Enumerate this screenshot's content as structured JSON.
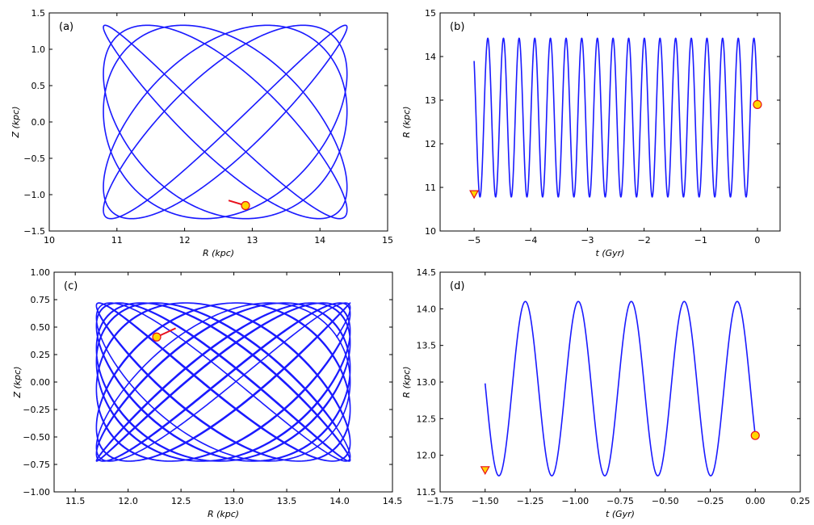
{
  "colors": {
    "orbit": "#1a1aff",
    "marker_fill": "#ffd700",
    "marker_edge": "#e8101c",
    "segment": "#e8101c"
  },
  "chart_data": [
    {
      "panel": "(a)",
      "type": "line",
      "xlabel": "R (kpc)",
      "ylabel": "Z (kpc)",
      "xlim": [
        10,
        15
      ],
      "ylim": [
        -1.5,
        1.5
      ],
      "xticks": [
        10,
        11,
        12,
        13,
        14,
        15
      ],
      "yticks": [
        -1.5,
        -1.0,
        -0.5,
        0.0,
        0.5,
        1.0,
        1.5
      ],
      "xtick_labels": [
        "10",
        "11",
        "12",
        "13",
        "14",
        "15"
      ],
      "ytick_labels": [
        "−1.5",
        "−1.0",
        "−0.5",
        "0.0",
        "0.5",
        "1.0",
        "1.5"
      ],
      "orbit": {
        "r_min": 10.8,
        "r_max": 14.4,
        "z_amp": 1.33,
        "cycles": 11,
        "z_cycles": 13.2,
        "phase_r": 0.45,
        "phase_z": 4.2
      },
      "current_position": {
        "x": 12.9,
        "y": -1.15
      },
      "start_position": null,
      "recent_path": [
        {
          "x": 12.65,
          "y": -1.08
        },
        {
          "x": 12.9,
          "y": -1.15
        }
      ]
    },
    {
      "panel": "(b)",
      "type": "line",
      "xlabel": "t (Gyr)",
      "ylabel": "R (kpc)",
      "xlim": [
        -5.6,
        0.4
      ],
      "ylim": [
        10,
        15
      ],
      "xticks": [
        -5,
        -4,
        -3,
        -2,
        -1,
        0
      ],
      "yticks": [
        10,
        11,
        12,
        13,
        14,
        15
      ],
      "xtick_labels": [
        "−5",
        "−4",
        "−3",
        "−2",
        "−1",
        "0"
      ],
      "ytick_labels": [
        "10",
        "11",
        "12",
        "13",
        "14",
        "15"
      ],
      "series": {
        "t_start": -5.0,
        "t_end": 0.0,
        "r_min": 10.78,
        "r_max": 14.42,
        "n_max": 18,
        "end_value": 12.9
      },
      "current_position": {
        "x": 0.0,
        "y": 12.9
      },
      "start_position": {
        "x": -5.0,
        "y": 10.85
      },
      "recent_path": null
    },
    {
      "panel": "(c)",
      "type": "line",
      "xlabel": "R (kpc)",
      "ylabel": "Z (kpc)",
      "xlim": [
        11.3,
        14.5
      ],
      "ylim": [
        -1.0,
        1.0
      ],
      "xticks": [
        11.5,
        12.0,
        12.5,
        13.0,
        13.5,
        14.0,
        14.5
      ],
      "yticks": [
        -1.0,
        -0.75,
        -0.5,
        -0.25,
        0.0,
        0.25,
        0.5,
        0.75,
        1.0
      ],
      "xtick_labels": [
        "11.5",
        "12.0",
        "12.5",
        "13.0",
        "13.5",
        "14.0",
        "14.5"
      ],
      "ytick_labels": [
        "−1.00",
        "−0.75",
        "−0.50",
        "−0.25",
        "0.00",
        "0.25",
        "0.50",
        "0.75",
        "1.00"
      ],
      "orbit": {
        "r_min": 11.7,
        "r_max": 14.1,
        "z_amp": 0.72,
        "cycles": 18,
        "z_cycles": 23.5,
        "phase_r": 1.1,
        "phase_z": 0.6
      },
      "current_position": {
        "x": 12.27,
        "y": 0.41
      },
      "start_position": null,
      "recent_path": [
        {
          "x": 12.27,
          "y": 0.41
        },
        {
          "x": 12.45,
          "y": 0.49
        }
      ]
    },
    {
      "panel": "(d)",
      "type": "line",
      "xlabel": "t (Gyr)",
      "ylabel": "R (kpc)",
      "xlim": [
        -1.75,
        0.25
      ],
      "ylim": [
        11.5,
        14.5
      ],
      "xticks": [
        -1.75,
        -1.5,
        -1.25,
        -1.0,
        -0.75,
        -0.5,
        -0.25,
        0.0,
        0.25
      ],
      "yticks": [
        11.5,
        12.0,
        12.5,
        13.0,
        13.5,
        14.0,
        14.5
      ],
      "xtick_labels": [
        "−1.75",
        "−1.50",
        "−1.25",
        "−1.00",
        "−0.75",
        "−0.50",
        "−0.25",
        "0.00",
        "0.25"
      ],
      "ytick_labels": [
        "11.5",
        "12.0",
        "12.5",
        "13.0",
        "13.5",
        "14.0",
        "14.5"
      ],
      "series": {
        "t_start": -1.5,
        "t_end": 0.0,
        "r_min": 11.72,
        "r_max": 14.1,
        "n_max": 5,
        "end_value": 12.27
      },
      "current_position": {
        "x": 0.0,
        "y": 12.27
      },
      "start_position": {
        "x": -1.5,
        "y": 11.8
      },
      "recent_path": null
    }
  ]
}
